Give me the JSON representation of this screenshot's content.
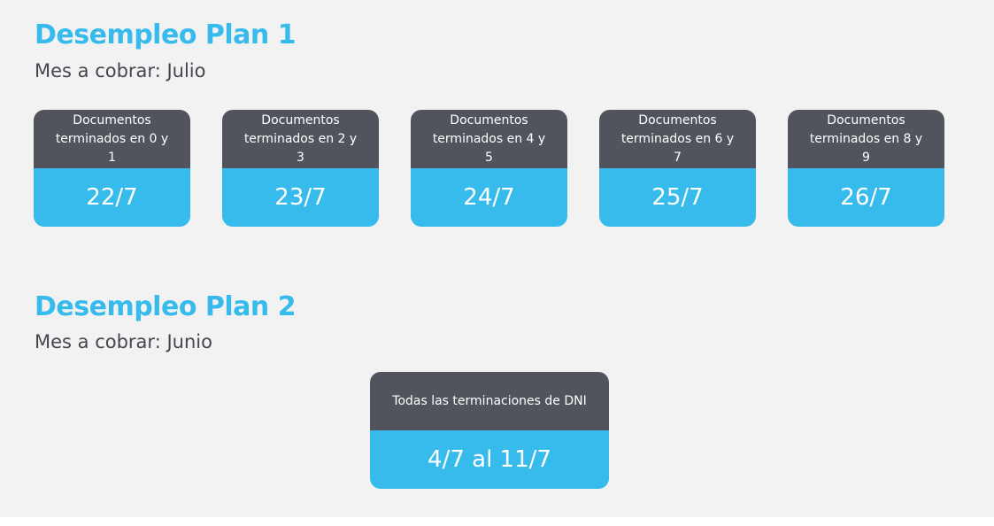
{
  "plan1": {
    "title": "Desempleo Plan 1",
    "subtitle": "Mes a cobrar: Julio",
    "cards": [
      {
        "label": "Documentos terminados en 0 y 1",
        "date": "22/7"
      },
      {
        "label": "Documentos terminados en 2 y 3",
        "date": "23/7"
      },
      {
        "label": "Documentos terminados en 4 y 5",
        "date": "24/7"
      },
      {
        "label": "Documentos terminados en 6 y 7",
        "date": "25/7"
      },
      {
        "label": "Documentos terminados en 8 y 9",
        "date": "26/7"
      }
    ]
  },
  "plan2": {
    "title": "Desempleo Plan 2",
    "subtitle": "Mes a cobrar: Junio",
    "card": {
      "label": "Todas las terminaciones de DNI",
      "date": "4/7 al 11/7"
    }
  }
}
